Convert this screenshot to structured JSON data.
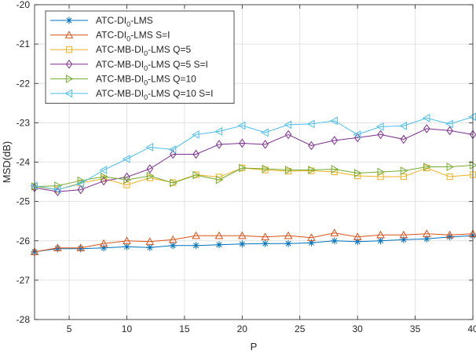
{
  "chart_data": {
    "type": "line",
    "xlabel": "P",
    "ylabel": "MSD(dB)",
    "xlim": [
      2,
      40
    ],
    "ylim": [
      -28,
      -20
    ],
    "xticks": [
      5,
      10,
      15,
      20,
      25,
      30,
      35,
      40
    ],
    "yticks": [
      -28,
      -27,
      -26,
      -25,
      -24,
      -23,
      -22,
      -21,
      -20
    ],
    "grid": true,
    "legend_position": "top-left",
    "x": [
      2,
      4,
      6,
      8,
      10,
      12,
      14,
      16,
      18,
      20,
      22,
      24,
      26,
      28,
      30,
      32,
      34,
      36,
      38,
      40
    ],
    "series": [
      {
        "name": "ATC-DI0-LMS",
        "label_main": "ATC-DI",
        "label_sub": "0",
        "label_rest": "-LMS",
        "color": "#0072BD",
        "marker": "asterisk",
        "values": [
          -26.28,
          -26.2,
          -26.2,
          -26.18,
          -26.15,
          -26.17,
          -26.12,
          -26.12,
          -26.1,
          -26.08,
          -26.07,
          -26.07,
          -26.05,
          -26.0,
          -26.02,
          -26.0,
          -25.97,
          -25.95,
          -25.9,
          -25.87
        ]
      },
      {
        "name": "ATC-DI0-LMS S=I",
        "label_main": "ATC-DI",
        "label_sub": "0",
        "label_rest": "-LMS S=I",
        "color": "#D95319",
        "marker": "triangle-up",
        "values": [
          -26.28,
          -26.18,
          -26.18,
          -26.07,
          -26.0,
          -26.02,
          -25.97,
          -25.87,
          -25.87,
          -25.87,
          -25.9,
          -25.87,
          -25.92,
          -25.8,
          -25.9,
          -25.85,
          -25.85,
          -25.82,
          -25.85,
          -25.82
        ]
      },
      {
        "name": "ATC-MB-DI0-LMS Q=5",
        "label_main": "ATC-MB-DI",
        "label_sub": "0",
        "label_rest": "-LMS Q=5",
        "color": "#EDB120",
        "marker": "square",
        "values": [
          -24.62,
          -24.7,
          -24.53,
          -24.42,
          -24.58,
          -24.4,
          -24.52,
          -24.32,
          -24.38,
          -24.15,
          -24.2,
          -24.23,
          -24.22,
          -24.25,
          -24.35,
          -24.37,
          -24.37,
          -24.15,
          -24.37,
          -24.32
        ]
      },
      {
        "name": "ATC-MB-DI0-LMS Q=5 S=I",
        "label_main": "ATC-MB-DI",
        "label_sub": "0",
        "label_rest": "-LMS Q=5 S=I",
        "color": "#7E2F8E",
        "marker": "diamond",
        "values": [
          -24.65,
          -24.75,
          -24.7,
          -24.48,
          -24.38,
          -24.17,
          -23.8,
          -23.8,
          -23.55,
          -23.52,
          -23.55,
          -23.3,
          -23.58,
          -23.45,
          -23.38,
          -23.3,
          -23.42,
          -23.15,
          -23.2,
          -23.3
        ]
      },
      {
        "name": "ATC-MB-DI0-LMS Q=10",
        "label_main": "ATC-MB-DI",
        "label_sub": "0",
        "label_rest": "-LMS Q=10",
        "color": "#77AC30",
        "marker": "triangle-right",
        "values": [
          -24.62,
          -24.6,
          -24.47,
          -24.37,
          -24.45,
          -24.35,
          -24.53,
          -24.33,
          -24.45,
          -24.15,
          -24.17,
          -24.2,
          -24.2,
          -24.18,
          -24.28,
          -24.25,
          -24.22,
          -24.12,
          -24.12,
          -24.08
        ]
      },
      {
        "name": "ATC-MB-DI0-LMS Q=10 S=I",
        "label_main": "ATC-MB-DI",
        "label_sub": "0",
        "label_rest": "-LMS Q=10 S=I",
        "color": "#4DBEEE",
        "marker": "triangle-left",
        "values": [
          -24.6,
          -24.7,
          -24.55,
          -24.2,
          -23.92,
          -23.62,
          -23.68,
          -23.3,
          -23.22,
          -23.07,
          -23.25,
          -23.05,
          -23.03,
          -22.95,
          -23.3,
          -23.1,
          -23.08,
          -22.88,
          -23.03,
          -22.85
        ]
      }
    ]
  }
}
